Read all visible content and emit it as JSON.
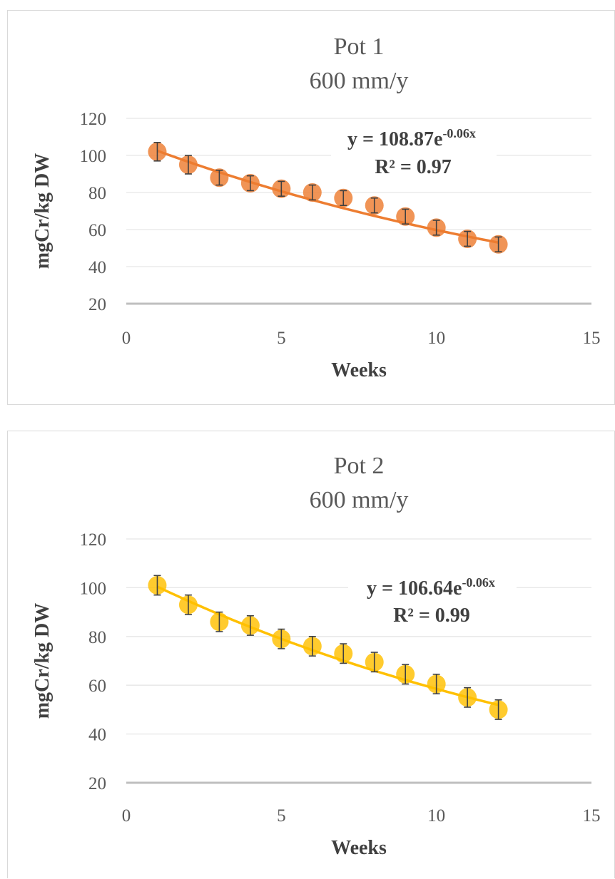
{
  "chart_data": [
    {
      "type": "scatter",
      "title": "Pot 1",
      "subtitle": "600 mm/y",
      "xlabel": "Weeks",
      "ylabel": "mgCr/kg DW",
      "xlim": [
        0,
        15
      ],
      "ylim": [
        20,
        120
      ],
      "xticks": [
        "0",
        "5",
        "10",
        "15"
      ],
      "yticks": [
        "20",
        "40",
        "60",
        "80",
        "100",
        "120"
      ],
      "grid": true,
      "color": "#ED7D31",
      "trendline": {
        "type": "exponential",
        "a": 108.87,
        "b": -0.06,
        "equation": "y = 108.87e",
        "exponent": "-0.06x",
        "r2_text": "R² = 0.97"
      },
      "series": [
        {
          "x": [
            1,
            2,
            3,
            4,
            5,
            6,
            7,
            8,
            9,
            10,
            11,
            12
          ],
          "y": [
            102,
            95,
            88,
            85,
            82,
            80,
            77,
            73,
            67,
            61,
            55,
            52
          ],
          "error": [
            5,
            5,
            4,
            4,
            4,
            4,
            4,
            4,
            4,
            4,
            4,
            4
          ]
        }
      ]
    },
    {
      "type": "scatter",
      "title": "Pot 2",
      "subtitle": "600 mm/y",
      "xlabel": "Weeks",
      "ylabel": "mgCr/kg DW",
      "xlim": [
        0,
        15
      ],
      "ylim": [
        20,
        120
      ],
      "xticks": [
        "0",
        "5",
        "10",
        "15"
      ],
      "yticks": [
        "20",
        "40",
        "60",
        "80",
        "100",
        "120"
      ],
      "grid": true,
      "color": "#FFC000",
      "trendline": {
        "type": "exponential",
        "a": 106.64,
        "b": -0.06,
        "equation": "y = 106.64e",
        "exponent": "-0.06x",
        "r2_text": "R² = 0.99"
      },
      "series": [
        {
          "x": [
            1,
            2,
            3,
            4,
            5,
            6,
            7,
            8,
            9,
            10,
            11,
            12
          ],
          "y": [
            101,
            93,
            86,
            84.5,
            79,
            76,
            73,
            69.5,
            64.5,
            60.5,
            55,
            50
          ],
          "error": [
            4,
            4,
            4,
            4,
            4,
            4,
            4,
            4,
            4,
            4,
            4,
            4
          ]
        }
      ]
    }
  ]
}
